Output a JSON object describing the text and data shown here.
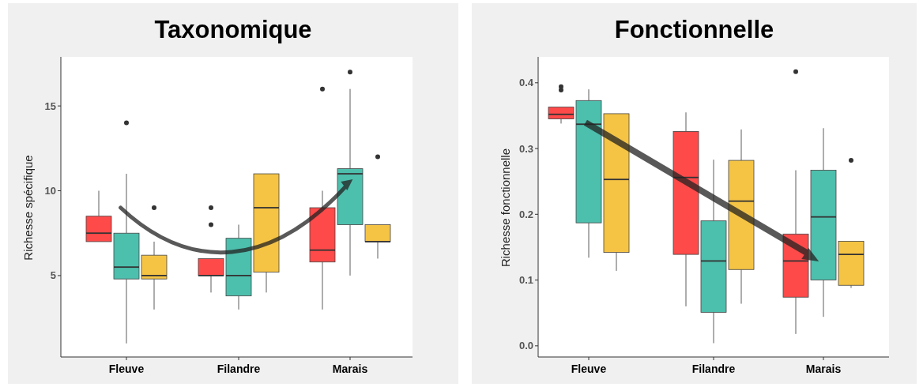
{
  "chart_data": [
    {
      "type": "box",
      "title": "Taxonomique",
      "ylabel": "Richesse spécifique",
      "categories": [
        "Fleuve",
        "Filandre",
        "Marais"
      ],
      "ylim": [
        0.2,
        17.8
      ],
      "yticks": [
        5,
        10,
        15
      ],
      "grid": false,
      "series": [
        {
          "color": "#ff4a4a",
          "boxes": [
            {
              "low": 7,
              "q1": 7,
              "median": 7.5,
              "q3": 8.5,
              "high": 10
            },
            {
              "low": 4,
              "q1": 5,
              "median": 5,
              "q3": 6,
              "high": 6,
              "outliers": [
                8,
                9
              ]
            },
            {
              "low": 3,
              "q1": 5.8,
              "median": 6.5,
              "q3": 9,
              "high": 10,
              "outliers": [
                16
              ]
            }
          ]
        },
        {
          "color": "#4dbfad",
          "boxes": [
            {
              "low": 1,
              "q1": 4.8,
              "median": 5.5,
              "q3": 7.5,
              "high": 11,
              "outliers": [
                14
              ]
            },
            {
              "low": 3,
              "q1": 3.8,
              "median": 5,
              "q3": 7.2,
              "high": 8
            },
            {
              "low": 5,
              "q1": 8,
              "median": 11,
              "q3": 11.3,
              "high": 16,
              "outliers": [
                17
              ]
            }
          ]
        },
        {
          "color": "#f5c445",
          "boxes": [
            {
              "low": 3,
              "q1": 4.8,
              "median": 5,
              "q3": 6.2,
              "high": 7,
              "outliers": [
                9
              ]
            },
            {
              "low": 4,
              "q1": 5.2,
              "median": 9,
              "q3": 11,
              "high": 11
            },
            {
              "low": 6,
              "q1": 7,
              "median": 7,
              "q3": 8,
              "high": 8,
              "outliers": [
                12
              ]
            }
          ]
        }
      ]
    },
    {
      "type": "box",
      "title": "Fonctionnelle",
      "ylabel": "Richesse fonctionnelle",
      "categories": [
        "Fleuve",
        "Filandre",
        "Marais"
      ],
      "ylim": [
        -0.017,
        0.437
      ],
      "yticks": [
        {
          "value": 0,
          "label": "0.0"
        },
        {
          "value": 0.1,
          "label": "0.1"
        },
        {
          "value": 0.2,
          "label": "0.2"
        },
        {
          "value": 0.3,
          "label": "0.3"
        },
        {
          "value": 0.4,
          "label": "0.4"
        }
      ],
      "grid": false,
      "series": [
        {
          "color": "#ff4a4a",
          "boxes": [
            {
              "low": 0.338,
              "q1": 0.345,
              "median": 0.352,
              "q3": 0.363,
              "high": 0.363,
              "outliers": [
                0.389,
                0.394
              ]
            },
            {
              "low": 0.06,
              "q1": 0.139,
              "median": 0.256,
              "q3": 0.326,
              "high": 0.355
            },
            {
              "low": 0.018,
              "q1": 0.074,
              "median": 0.129,
              "q3": 0.17,
              "high": 0.267,
              "outliers": [
                0.417
              ]
            }
          ]
        },
        {
          "color": "#4dbfad",
          "boxes": [
            {
              "low": 0.134,
              "q1": 0.187,
              "median": 0.337,
              "q3": 0.373,
              "high": 0.39
            },
            {
              "low": 0.004,
              "q1": 0.051,
              "median": 0.129,
              "q3": 0.19,
              "high": 0.283
            },
            {
              "low": 0.044,
              "q1": 0.1,
              "median": 0.196,
              "q3": 0.267,
              "high": 0.331
            }
          ]
        },
        {
          "color": "#f5c445",
          "boxes": [
            {
              "low": 0.114,
              "q1": 0.142,
              "median": 0.253,
              "q3": 0.353,
              "high": 0.353
            },
            {
              "low": 0.064,
              "q1": 0.116,
              "median": 0.22,
              "q3": 0.282,
              "high": 0.329
            },
            {
              "low": 0.088,
              "q1": 0.092,
              "median": 0.139,
              "q3": 0.159,
              "high": 0.159,
              "outliers": [
                0.282
              ]
            }
          ]
        }
      ]
    }
  ]
}
